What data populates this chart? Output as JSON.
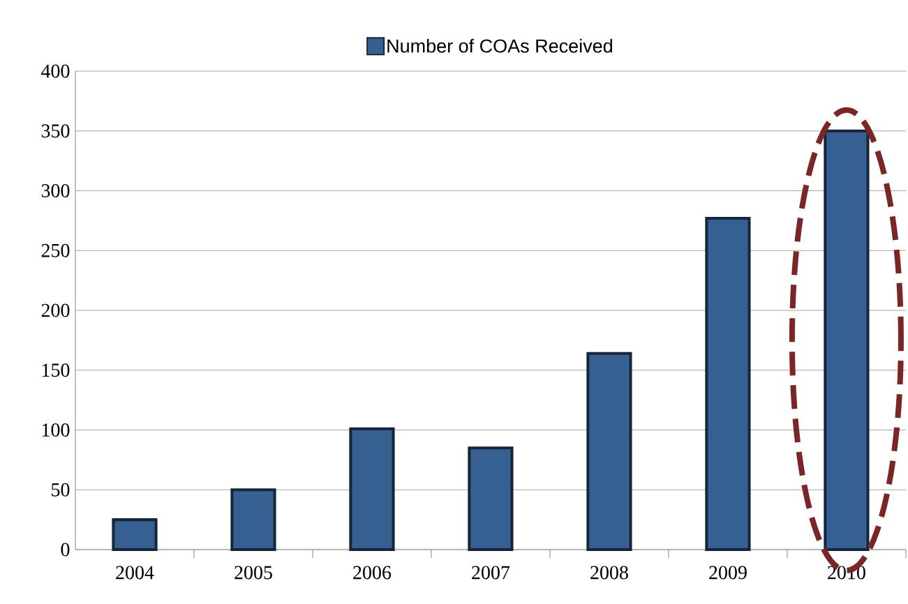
{
  "chart_data": {
    "type": "bar",
    "categories": [
      "2004",
      "2005",
      "2006",
      "2007",
      "2008",
      "2009",
      "2010"
    ],
    "series": [
      {
        "name": "Number of COAs Received",
        "color": "#376092",
        "values": [
          25,
          50,
          101,
          85,
          164,
          277,
          350
        ]
      }
    ],
    "ylim": [
      0,
      400
    ],
    "yticks": [
      0,
      50,
      100,
      150,
      200,
      250,
      300,
      350,
      400
    ],
    "grid": "y",
    "legend": "top"
  }
}
